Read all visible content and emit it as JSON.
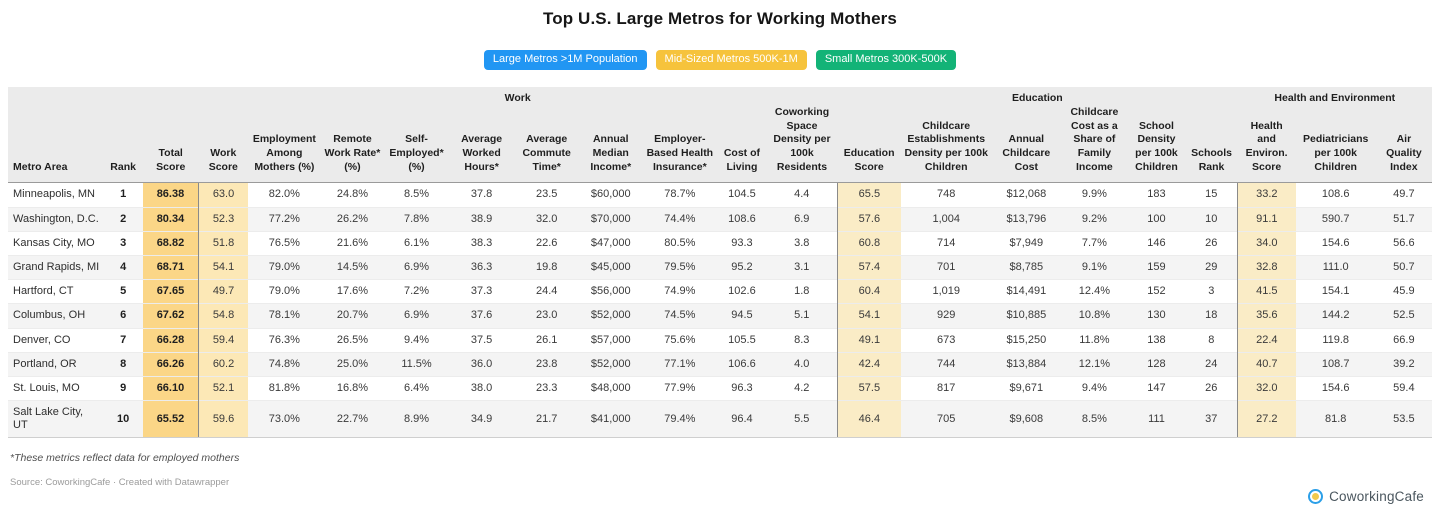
{
  "title": "Top U.S. Large Metros for Working Mothers",
  "legend": {
    "badges": [
      {
        "label": "Large Metros >1M Population",
        "color": "#2196f3"
      },
      {
        "label": "Mid-Sized Metros 500K-1M",
        "color": "#f6c33c"
      },
      {
        "label": "Small Metros 300K-500K",
        "color": "#13b377"
      }
    ]
  },
  "chart_data": {
    "type": "table",
    "title": "Top U.S. Large Metros for Working Mothers",
    "group_headers": [
      {
        "label": "",
        "colspan": 3
      },
      {
        "label": "Work",
        "colspan": 10
      },
      {
        "label": "Education",
        "colspan": 6
      },
      {
        "label": "Health and Environment",
        "colspan": 3
      }
    ],
    "columns": [
      "Metro Area",
      "Rank",
      "Total Score",
      "Work Score",
      "Employment Among Mothers (%)",
      "Remote Work Rate* (%)",
      "Self-Employed* (%)",
      "Average Worked Hours*",
      "Average Commute Time*",
      "Annual Median Income*",
      "Employer-Based Health Insurance*",
      "Cost of Living",
      "Coworking Space Density per 100k Residents",
      "Education Score",
      "Childcare Establishments Density per 100k Children",
      "Annual Childcare Cost",
      "Childcare Cost as a Share of Family Income",
      "School Density per 100k Children",
      "Schools Rank",
      "Health and Environ. Score",
      "Pediatricians per 100k Children",
      "Air Quality Index"
    ],
    "rows": [
      [
        "Minneapolis, MN",
        "1",
        "86.38",
        "63.0",
        "82.0%",
        "24.8%",
        "8.5%",
        "37.8",
        "23.5",
        "$60,000",
        "78.7%",
        "104.5",
        "4.4",
        "65.5",
        "748",
        "$12,068",
        "9.9%",
        "183",
        "15",
        "33.2",
        "108.6",
        "49.7"
      ],
      [
        "Washington, D.C.",
        "2",
        "80.34",
        "52.3",
        "77.2%",
        "26.2%",
        "7.8%",
        "38.9",
        "32.0",
        "$70,000",
        "74.4%",
        "108.6",
        "6.9",
        "57.6",
        "1,004",
        "$13,796",
        "9.2%",
        "100",
        "10",
        "91.1",
        "590.7",
        "51.7"
      ],
      [
        "Kansas City, MO",
        "3",
        "68.82",
        "51.8",
        "76.5%",
        "21.6%",
        "6.1%",
        "38.3",
        "22.6",
        "$47,000",
        "80.5%",
        "93.3",
        "3.8",
        "60.8",
        "714",
        "$7,949",
        "7.7%",
        "146",
        "26",
        "34.0",
        "154.6",
        "56.6"
      ],
      [
        "Grand Rapids, MI",
        "4",
        "68.71",
        "54.1",
        "79.0%",
        "14.5%",
        "6.9%",
        "36.3",
        "19.8",
        "$45,000",
        "79.5%",
        "95.2",
        "3.1",
        "57.4",
        "701",
        "$8,785",
        "9.1%",
        "159",
        "29",
        "32.8",
        "111.0",
        "50.7"
      ],
      [
        "Hartford, CT",
        "5",
        "67.65",
        "49.7",
        "79.0%",
        "17.6%",
        "7.2%",
        "37.3",
        "24.4",
        "$56,000",
        "74.9%",
        "102.6",
        "1.8",
        "60.4",
        "1,019",
        "$14,491",
        "12.4%",
        "152",
        "3",
        "41.5",
        "154.1",
        "45.9"
      ],
      [
        "Columbus, OH",
        "6",
        "67.62",
        "54.8",
        "78.1%",
        "20.7%",
        "6.9%",
        "37.6",
        "23.0",
        "$52,000",
        "74.5%",
        "94.5",
        "5.1",
        "54.1",
        "929",
        "$10,885",
        "10.8%",
        "130",
        "18",
        "35.6",
        "144.2",
        "52.5"
      ],
      [
        "Denver, CO",
        "7",
        "66.28",
        "59.4",
        "76.3%",
        "26.5%",
        "9.4%",
        "37.5",
        "26.1",
        "$57,000",
        "75.6%",
        "105.5",
        "8.3",
        "49.1",
        "673",
        "$15,250",
        "11.8%",
        "138",
        "8",
        "22.4",
        "119.8",
        "66.9"
      ],
      [
        "Portland, OR",
        "8",
        "66.26",
        "60.2",
        "74.8%",
        "25.0%",
        "11.5%",
        "36.0",
        "23.8",
        "$52,000",
        "77.1%",
        "106.6",
        "4.0",
        "42.4",
        "744",
        "$13,884",
        "12.1%",
        "128",
        "24",
        "40.7",
        "108.7",
        "39.2"
      ],
      [
        "St. Louis, MO",
        "9",
        "66.10",
        "52.1",
        "81.8%",
        "16.8%",
        "6.4%",
        "38.0",
        "23.3",
        "$48,000",
        "77.9%",
        "96.3",
        "4.2",
        "57.5",
        "817",
        "$9,671",
        "9.4%",
        "147",
        "26",
        "32.0",
        "154.6",
        "59.4"
      ],
      [
        "Salt Lake City, UT",
        "10",
        "65.52",
        "59.6",
        "73.0%",
        "22.7%",
        "8.9%",
        "34.9",
        "21.7",
        "$41,000",
        "79.4%",
        "96.4",
        "5.5",
        "46.4",
        "705",
        "$9,608",
        "8.5%",
        "111",
        "37",
        "27.2",
        "81.8",
        "53.5"
      ]
    ],
    "highlight_colors": {
      "total_score": "#fbd687",
      "work_score": "#fce8b6",
      "education_score": "#faecc6",
      "health_score": "#faecc6"
    },
    "layout_hints": {
      "header_background": "#ebebeb",
      "row_stripe": "#f4f4f4"
    }
  },
  "footer": {
    "footnote": "*These metrics reflect data for employed mothers",
    "source": "Source: CoworkingCafe · Created with Datawrapper",
    "logo_text": "CoworkingCafe"
  }
}
